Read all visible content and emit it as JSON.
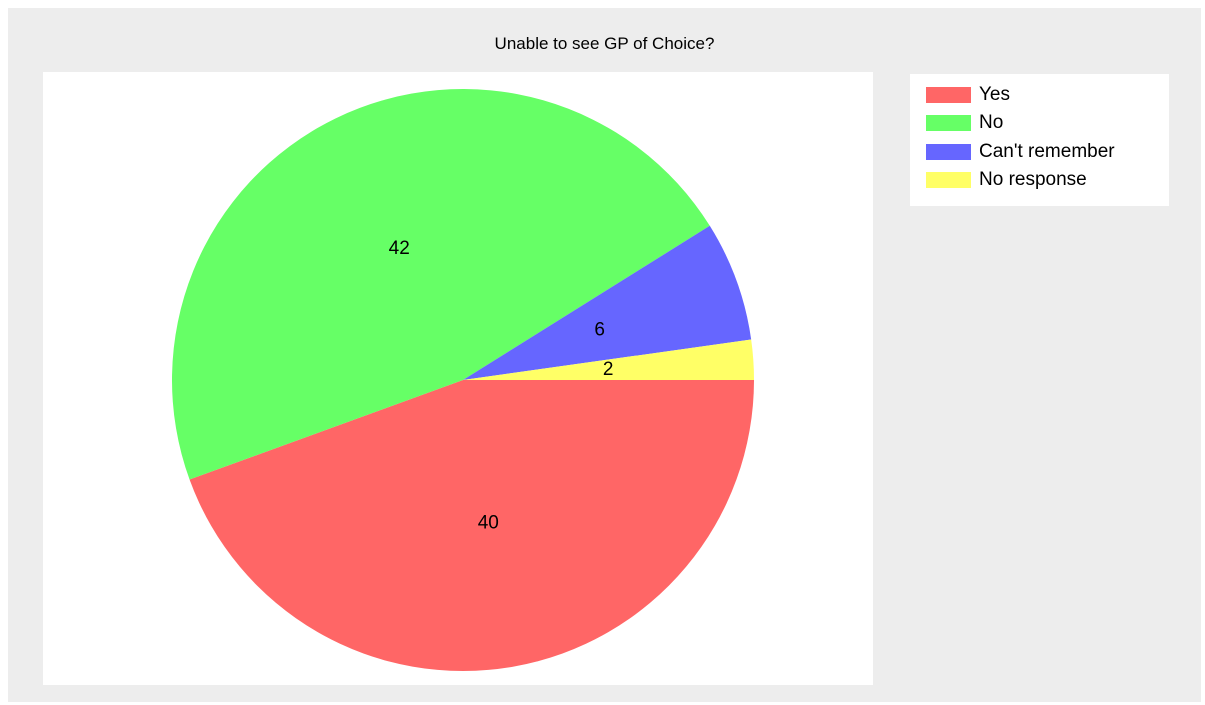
{
  "chart_data": {
    "type": "pie",
    "title": "Unable to see GP of Choice?",
    "categories": [
      "Yes",
      "No",
      "Can't remember",
      "No response"
    ],
    "values": [
      40,
      42,
      6,
      2
    ],
    "colors": [
      "#ff6666",
      "#66ff66",
      "#6666ff",
      "#ffff66"
    ],
    "labels": [
      "40",
      "42",
      "6",
      "2"
    ],
    "legend": {
      "placement": "right",
      "entries": [
        "Yes",
        "No",
        "Can't remember",
        "No response"
      ]
    }
  }
}
